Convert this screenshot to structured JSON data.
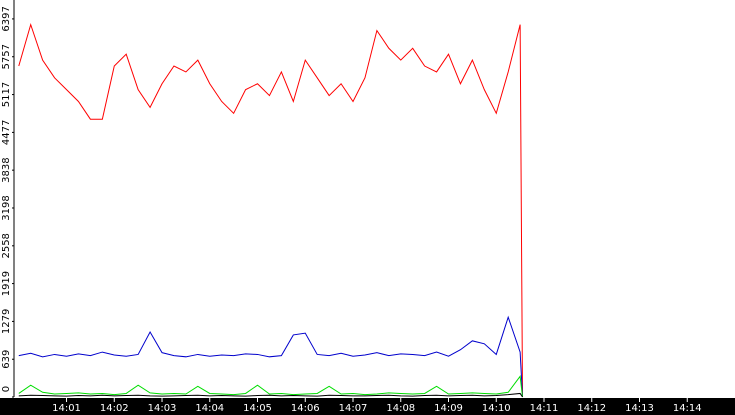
{
  "chart_data": {
    "type": "line",
    "x": [
      840,
      840.25,
      840.5,
      840.75,
      841,
      841.25,
      841.5,
      841.75,
      842,
      842.25,
      842.5,
      842.75,
      843,
      843.25,
      843.5,
      843.75,
      844,
      844.25,
      844.5,
      844.75,
      845,
      845.25,
      845.5,
      845.75,
      846,
      846.25,
      846.5,
      846.75,
      847,
      847.25,
      847.5,
      847.75,
      848,
      848.25,
      848.5,
      848.75,
      849,
      849.25,
      849.5,
      849.75,
      850,
      850.25,
      850.5,
      850.55
    ],
    "series": [
      {
        "color": "#ff0000",
        "values": [
          5600,
          6300,
          5700,
          5400,
          5200,
          5000,
          4700,
          4700,
          5600,
          5800,
          5200,
          4900,
          5300,
          5600,
          5500,
          5700,
          5300,
          5000,
          4800,
          5200,
          5300,
          5100,
          5500,
          5000,
          5700,
          5400,
          5100,
          5300,
          5000,
          5400,
          6200,
          5900,
          5700,
          5900,
          5600,
          5500,
          5800,
          5300,
          5700,
          5200,
          4800,
          5500,
          6300,
          0
        ]
      },
      {
        "color": "#0000cc",
        "values": [
          700,
          740,
          680,
          720,
          690,
          730,
          700,
          760,
          710,
          690,
          720,
          1100,
          750,
          700,
          680,
          720,
          690,
          710,
          700,
          730,
          720,
          680,
          700,
          1050,
          1080,
          720,
          700,
          740,
          690,
          710,
          750,
          700,
          730,
          720,
          700,
          760,
          690,
          800,
          950,
          900,
          720,
          1350,
          760,
          0
        ]
      },
      {
        "color": "#00dd00",
        "values": [
          60,
          200,
          80,
          50,
          60,
          70,
          50,
          60,
          40,
          60,
          200,
          70,
          50,
          60,
          50,
          180,
          60,
          50,
          40,
          60,
          200,
          50,
          60,
          40,
          50,
          60,
          180,
          50,
          60,
          40,
          50,
          70,
          60,
          50,
          60,
          180,
          50,
          60,
          70,
          60,
          50,
          80,
          350,
          0
        ]
      },
      {
        "color": "#000000",
        "values": [
          20,
          30,
          25,
          20,
          15,
          25,
          20,
          30,
          20,
          25,
          30,
          20,
          15,
          20,
          25,
          30,
          20,
          25,
          20,
          15,
          25,
          30,
          20,
          25,
          20,
          15,
          30,
          25,
          20,
          20,
          25,
          30,
          20,
          15,
          25,
          30,
          20,
          25,
          30,
          20,
          25,
          40,
          60,
          0
        ]
      }
    ],
    "xlim": [
      839.9,
      855
    ],
    "xticks": [
      {
        "value": 841,
        "label": "14:01"
      },
      {
        "value": 842,
        "label": "14:02"
      },
      {
        "value": 843,
        "label": "14:03"
      },
      {
        "value": 844,
        "label": "14:04"
      },
      {
        "value": 845,
        "label": "14:05"
      },
      {
        "value": 846,
        "label": "14:06"
      },
      {
        "value": 847,
        "label": "14:07"
      },
      {
        "value": 848,
        "label": "14:08"
      },
      {
        "value": 849,
        "label": "14:09"
      },
      {
        "value": 850,
        "label": "14:10"
      },
      {
        "value": 851,
        "label": "14:11"
      },
      {
        "value": 852,
        "label": "14:12"
      },
      {
        "value": 853,
        "label": "14:13"
      },
      {
        "value": 854,
        "label": "14:14"
      }
    ],
    "ylim": [
      0,
      6717
    ],
    "yticks": [
      0,
      639,
      1279,
      1919,
      2558,
      3198,
      3838,
      4477,
      5117,
      5757,
      6397
    ],
    "grid": false
  }
}
